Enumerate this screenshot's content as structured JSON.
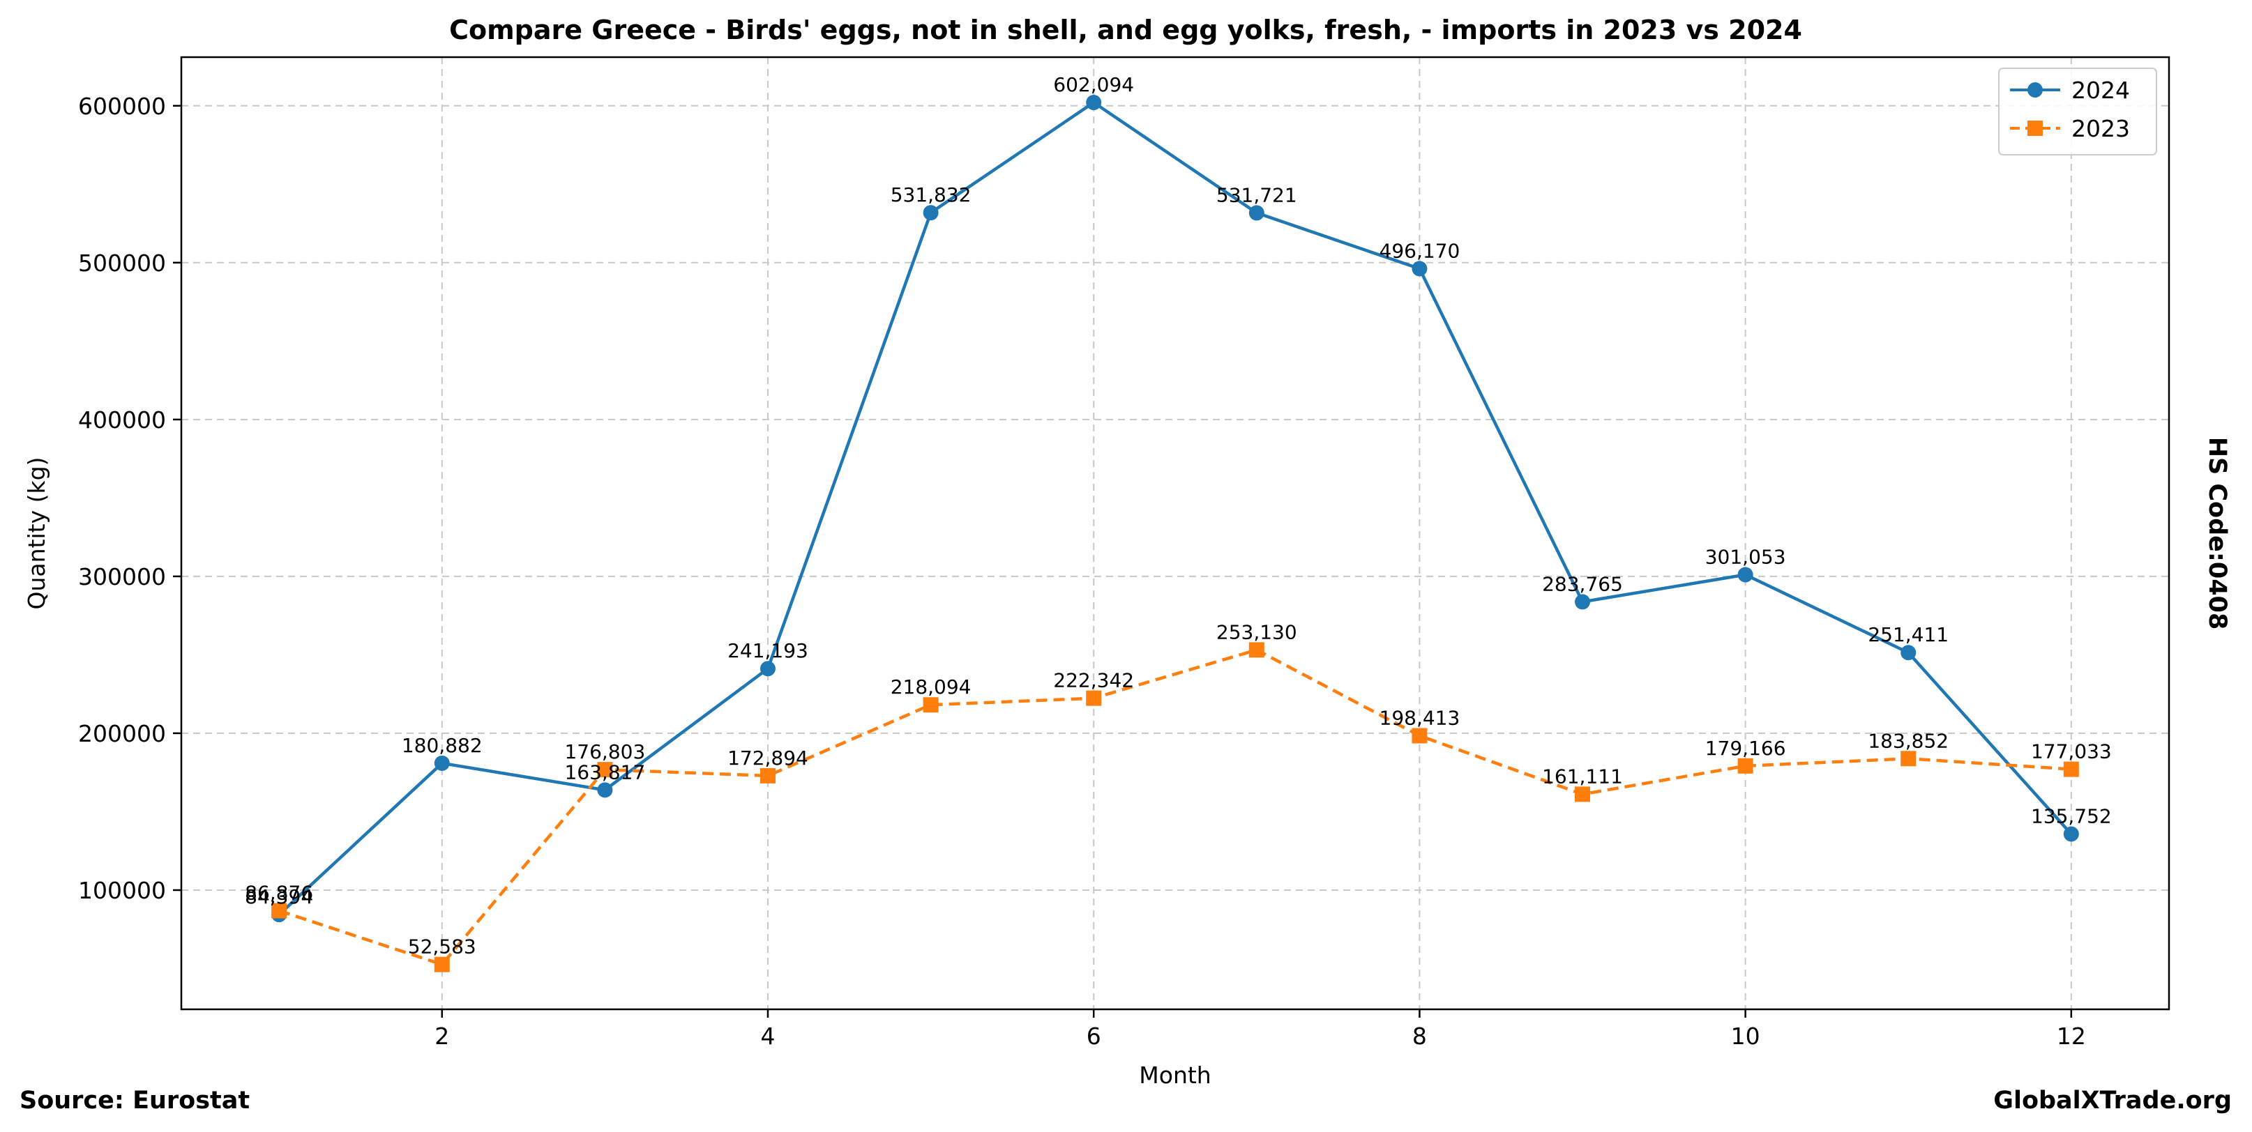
{
  "chart_data": {
    "type": "line",
    "title": "Compare Greece - Birds' eggs, not in shell, and egg yolks, fresh, - imports in 2023 vs 2024",
    "xlabel": "Month",
    "ylabel": "Quantity (kg)",
    "x": [
      1,
      2,
      3,
      4,
      5,
      6,
      7,
      8,
      9,
      10,
      11,
      12
    ],
    "xlim": [
      0.4,
      12.6
    ],
    "ylim": [
      24000,
      631000
    ],
    "xticks": [
      2,
      4,
      6,
      8,
      10,
      12
    ],
    "yticks": [
      100000,
      200000,
      300000,
      400000,
      500000,
      600000
    ],
    "grid": true,
    "legend_position": "top-right",
    "series": [
      {
        "name": "2024",
        "color": "#1f77b4",
        "style": "solid",
        "marker": "circle",
        "values": [
          84394,
          180882,
          163817,
          241193,
          531832,
          602094,
          531721,
          496170,
          283765,
          301053,
          251411,
          135752
        ],
        "labels": [
          "84,394",
          "180,882",
          "163,817",
          "241,193",
          "531,832",
          "602,094",
          "531,721",
          "496,170",
          "283,765",
          "301,053",
          "251,411",
          "135,752"
        ]
      },
      {
        "name": "2023",
        "color": "#ff7f0e",
        "style": "dashed",
        "marker": "square",
        "values": [
          86876,
          52583,
          176803,
          172894,
          218094,
          222342,
          253130,
          198413,
          161111,
          179166,
          183852,
          177033
        ],
        "labels": [
          "86,876",
          "52,583",
          "176,803",
          "172,894",
          "218,094",
          "222,342",
          "253,130",
          "198,413",
          "161,111",
          "179,166",
          "183,852",
          "177,033"
        ]
      }
    ]
  },
  "side_label": "HS Code:0408",
  "footer": {
    "source": "Source: Eurostat",
    "brand": "GlobalXTrade.org"
  }
}
